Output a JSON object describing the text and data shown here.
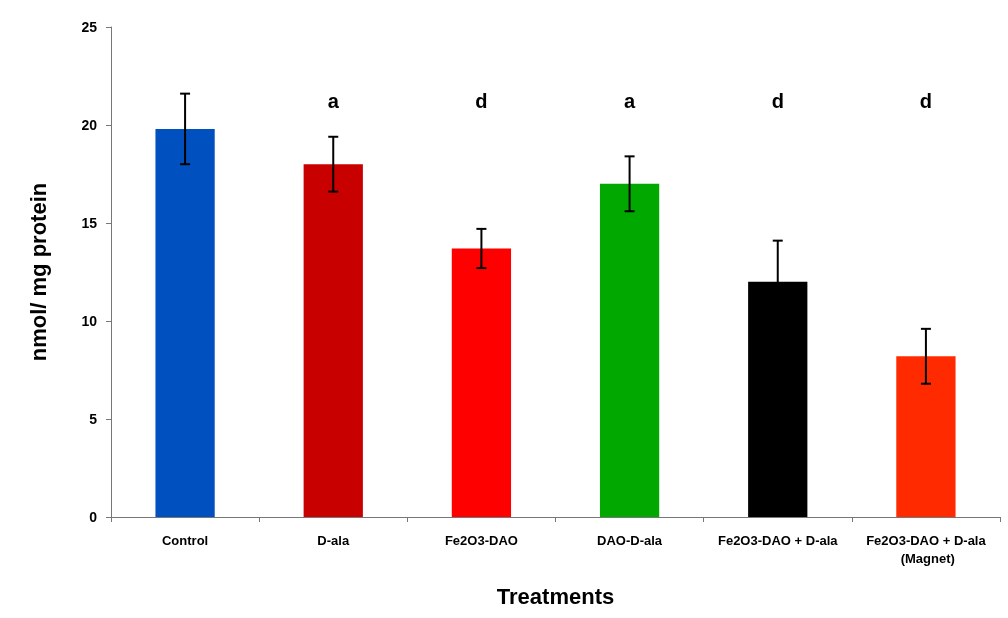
{
  "chart_data": {
    "type": "bar",
    "xlabel": "Treatments",
    "ylabel": "nmol/ mg protein",
    "categories": [
      "Control",
      "D-ala",
      "Fe2O3-DAO",
      "DAO-D-ala",
      "Fe2O3-DAO + D-ala",
      "Fe2O3-DAO + D-ala (Magnet)"
    ],
    "values": [
      19.8,
      18.0,
      13.7,
      17.0,
      12.0,
      8.2
    ],
    "colors": [
      "#0050c0",
      "#c80000",
      "#ff0000",
      "#00a800",
      "#000000",
      "#ff2a00"
    ],
    "errors": [
      1.8,
      1.4,
      1.0,
      1.4,
      2.1,
      1.4
    ],
    "ylim": [
      0,
      25
    ],
    "yticks": [
      0,
      5,
      10,
      15,
      20,
      25
    ],
    "grid": false,
    "annotations": [
      "a",
      "d",
      "a",
      "d",
      "d"
    ]
  }
}
